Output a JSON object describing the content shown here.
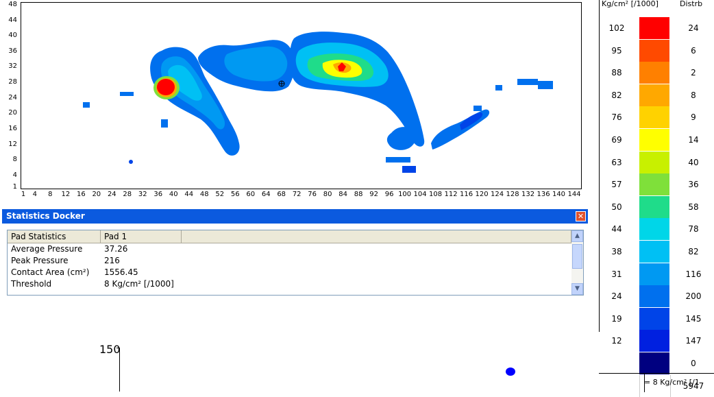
{
  "plot": {
    "y_ticks": [
      "48",
      "44",
      "40",
      "36",
      "32",
      "28",
      "24",
      "20",
      "16",
      "12",
      "8",
      "4",
      "1"
    ],
    "x_ticks": [
      "1",
      "4",
      "8",
      "12",
      "16",
      "20",
      "24",
      "28",
      "32",
      "36",
      "40",
      "44",
      "48",
      "52",
      "56",
      "60",
      "64",
      "68",
      "72",
      "76",
      "80",
      "84",
      "88",
      "92",
      "96",
      "100",
      "104",
      "108",
      "112",
      "116",
      "120",
      "124",
      "128",
      "132",
      "136",
      "140",
      "144"
    ]
  },
  "docker": {
    "title": "Statistics Docker",
    "close_icon": "close-icon",
    "columns": [
      "Pad Statistics",
      "Pad 1"
    ],
    "rows": [
      {
        "label": "Average Pressure",
        "value": "37.26"
      },
      {
        "label": "Peak Pressure",
        "value": "216"
      },
      {
        "label": "Contact Area (cm²)",
        "value": "1556.45"
      },
      {
        "label": "Threshold",
        "value": "8 Kg/cm² [/1000]"
      }
    ],
    "scroll_up_icon": "arrow-up-icon",
    "scroll_down_icon": "arrow-down-icon"
  },
  "legend": {
    "unit_header": "Kg/cm² [/1000]",
    "distrib_header": "Distrb",
    "rows": [
      {
        "value": "102",
        "color": "#ff0000",
        "dist": "24"
      },
      {
        "value": "95",
        "color": "#ff4a00",
        "dist": "6"
      },
      {
        "value": "88",
        "color": "#ff8000",
        "dist": "2"
      },
      {
        "value": "82",
        "color": "#ffa800",
        "dist": "8"
      },
      {
        "value": "76",
        "color": "#ffd200",
        "dist": "9"
      },
      {
        "value": "69",
        "color": "#ffff00",
        "dist": "14"
      },
      {
        "value": "63",
        "color": "#c8f000",
        "dist": "40"
      },
      {
        "value": "57",
        "color": "#7fe03a",
        "dist": "36"
      },
      {
        "value": "50",
        "color": "#1fdc8a",
        "dist": "58"
      },
      {
        "value": "44",
        "color": "#00d6e8",
        "dist": "78"
      },
      {
        "value": "38",
        "color": "#00c0f4",
        "dist": "82"
      },
      {
        "value": "31",
        "color": "#0099f2",
        "dist": "116"
      },
      {
        "value": "24",
        "color": "#0070ee",
        "dist": "200"
      },
      {
        "value": "19",
        "color": "#0044e8",
        "dist": "145"
      },
      {
        "value": "12",
        "color": "#0020e0",
        "dist": "147"
      },
      {
        "value": "",
        "color": "#000080",
        "dist": "0"
      },
      {
        "value": "",
        "color": "#ffffff",
        "dist": "5947"
      }
    ],
    "footer": "= 8 Kg/cm² [/1"
  },
  "bottom_chart": {
    "y_tick": "150"
  }
}
